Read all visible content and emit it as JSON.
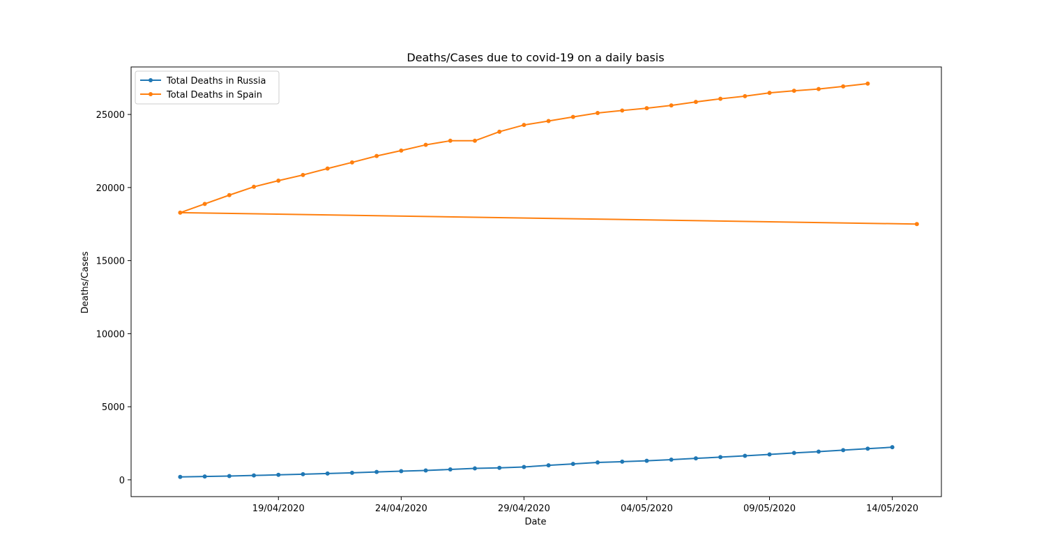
{
  "chart_data": {
    "type": "line",
    "title": "Deaths/Cases due to covid-19 on a daily basis",
    "xlabel": "Date",
    "ylabel": "Deaths/Cases",
    "x_axis": {
      "type": "date",
      "range": [
        "2020-04-13",
        "2020-05-16"
      ],
      "ticks": [
        {
          "date": "2020-04-19",
          "label": "19/04/2020"
        },
        {
          "date": "2020-04-24",
          "label": "24/04/2020"
        },
        {
          "date": "2020-04-29",
          "label": "29/04/2020"
        },
        {
          "date": "2020-05-04",
          "label": "04/05/2020"
        },
        {
          "date": "2020-05-09",
          "label": "09/05/2020"
        },
        {
          "date": "2020-05-14",
          "label": "14/05/2020"
        }
      ]
    },
    "y_axis": {
      "ylim": [
        -1150,
        28250
      ],
      "ticks": [
        0,
        5000,
        10000,
        15000,
        20000,
        25000
      ]
    },
    "grid": false,
    "legend_position": "top-left",
    "series": [
      {
        "name": "Total Deaths in Russia",
        "color": "#1f77b4",
        "points": [
          {
            "x": "2020-04-15",
            "y": 200
          },
          {
            "x": "2020-04-16",
            "y": 230
          },
          {
            "x": "2020-04-17",
            "y": 260
          },
          {
            "x": "2020-04-18",
            "y": 300
          },
          {
            "x": "2020-04-19",
            "y": 340
          },
          {
            "x": "2020-04-20",
            "y": 385
          },
          {
            "x": "2020-04-21",
            "y": 430
          },
          {
            "x": "2020-04-22",
            "y": 480
          },
          {
            "x": "2020-04-23",
            "y": 540
          },
          {
            "x": "2020-04-24",
            "y": 590
          },
          {
            "x": "2020-04-25",
            "y": 640
          },
          {
            "x": "2020-04-26",
            "y": 710
          },
          {
            "x": "2020-04-27",
            "y": 780
          },
          {
            "x": "2020-04-28",
            "y": 820
          },
          {
            "x": "2020-04-29",
            "y": 880
          },
          {
            "x": "2020-04-30",
            "y": 990
          },
          {
            "x": "2020-05-01",
            "y": 1090
          },
          {
            "x": "2020-05-02",
            "y": 1190
          },
          {
            "x": "2020-05-03",
            "y": 1240
          },
          {
            "x": "2020-05-04",
            "y": 1300
          },
          {
            "x": "2020-05-05",
            "y": 1380
          },
          {
            "x": "2020-05-06",
            "y": 1470
          },
          {
            "x": "2020-05-07",
            "y": 1550
          },
          {
            "x": "2020-05-08",
            "y": 1640
          },
          {
            "x": "2020-05-09",
            "y": 1740
          },
          {
            "x": "2020-05-10",
            "y": 1840
          },
          {
            "x": "2020-05-11",
            "y": 1930
          },
          {
            "x": "2020-05-12",
            "y": 2030
          },
          {
            "x": "2020-05-13",
            "y": 2130
          },
          {
            "x": "2020-05-14",
            "y": 2230
          }
        ]
      },
      {
        "name": "Total Deaths in Spain",
        "color": "#ff7f0e",
        "points": [
          {
            "x": "2020-05-15",
            "y": 17500
          },
          {
            "x": "2020-04-15",
            "y": 18280
          },
          {
            "x": "2020-04-16",
            "y": 18880
          },
          {
            "x": "2020-04-17",
            "y": 19480
          },
          {
            "x": "2020-04-18",
            "y": 20050
          },
          {
            "x": "2020-04-19",
            "y": 20470
          },
          {
            "x": "2020-04-20",
            "y": 20860
          },
          {
            "x": "2020-04-21",
            "y": 21300
          },
          {
            "x": "2020-04-22",
            "y": 21720
          },
          {
            "x": "2020-04-23",
            "y": 22160
          },
          {
            "x": "2020-04-24",
            "y": 22530
          },
          {
            "x": "2020-04-25",
            "y": 22920
          },
          {
            "x": "2020-04-26",
            "y": 23200
          },
          {
            "x": "2020-04-27",
            "y": 23200
          },
          {
            "x": "2020-04-28",
            "y": 23820
          },
          {
            "x": "2020-04-29",
            "y": 24280
          },
          {
            "x": "2020-04-30",
            "y": 24550
          },
          {
            "x": "2020-05-01",
            "y": 24830
          },
          {
            "x": "2020-05-02",
            "y": 25100
          },
          {
            "x": "2020-05-03",
            "y": 25270
          },
          {
            "x": "2020-05-04",
            "y": 25430
          },
          {
            "x": "2020-05-05",
            "y": 25620
          },
          {
            "x": "2020-05-06",
            "y": 25860
          },
          {
            "x": "2020-05-07",
            "y": 26070
          },
          {
            "x": "2020-05-08",
            "y": 26250
          },
          {
            "x": "2020-05-09",
            "y": 26480
          },
          {
            "x": "2020-05-10",
            "y": 26620
          },
          {
            "x": "2020-05-11",
            "y": 26740
          },
          {
            "x": "2020-05-12",
            "y": 26920
          },
          {
            "x": "2020-05-13",
            "y": 27110
          }
        ]
      }
    ]
  }
}
